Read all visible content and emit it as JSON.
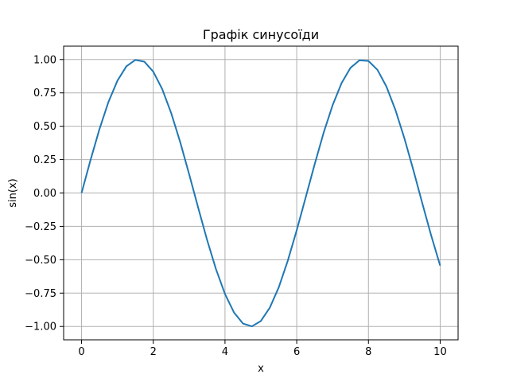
{
  "chart_data": {
    "type": "line",
    "title": "Графік синусоїди",
    "xlabel": "x",
    "ylabel": "sin(x)",
    "xlim": [
      -0.5,
      10.5
    ],
    "ylim": [
      -1.1,
      1.1
    ],
    "xticks": [
      0,
      2,
      4,
      6,
      8,
      10
    ],
    "xtick_labels": [
      "0",
      "2",
      "4",
      "6",
      "8",
      "10"
    ],
    "yticks": [
      -1.0,
      -0.75,
      -0.5,
      -0.25,
      0.0,
      0.25,
      0.5,
      0.75,
      1.0
    ],
    "ytick_labels": [
      "−1.00",
      "−0.75",
      "−0.50",
      "−0.25",
      "0.00",
      "0.25",
      "0.50",
      "0.75",
      "1.00"
    ],
    "grid": true,
    "series": [
      {
        "color": "#1f77b4",
        "x": [
          0.0,
          0.25,
          0.5,
          0.75,
          1.0,
          1.25,
          1.5,
          1.75,
          2.0,
          2.25,
          2.5,
          2.75,
          3.0,
          3.25,
          3.5,
          3.75,
          4.0,
          4.25,
          4.5,
          4.75,
          5.0,
          5.25,
          5.5,
          5.75,
          6.0,
          6.25,
          6.5,
          6.75,
          7.0,
          7.25,
          7.5,
          7.75,
          8.0,
          8.25,
          8.5,
          8.75,
          9.0,
          9.25,
          9.5,
          9.75,
          10.0
        ],
        "y": [
          0.0,
          0.247,
          0.479,
          0.682,
          0.841,
          0.949,
          0.997,
          0.984,
          0.909,
          0.778,
          0.598,
          0.382,
          0.141,
          -0.108,
          -0.351,
          -0.572,
          -0.757,
          -0.895,
          -0.978,
          -0.999,
          -0.959,
          -0.859,
          -0.706,
          -0.508,
          -0.279,
          -0.033,
          0.215,
          0.451,
          0.657,
          0.823,
          0.938,
          0.994,
          0.989,
          0.923,
          0.798,
          0.624,
          0.412,
          0.174,
          -0.075,
          -0.319,
          -0.544
        ]
      }
    ]
  }
}
